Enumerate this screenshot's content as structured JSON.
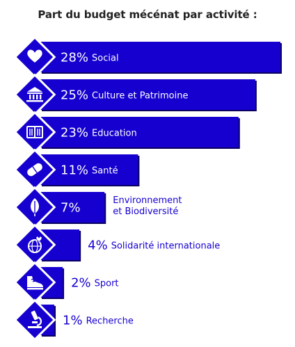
{
  "chart_data": {
    "type": "bar",
    "orientation": "horizontal",
    "title": "Part du budget mécénat par activité :",
    "categories": [
      "Social",
      "Culture et Patrimoine",
      "Education",
      "Santé",
      "Environnement et Biodiversité",
      "Solidarité internationale",
      "Sport",
      "Recherche"
    ],
    "label_lines": [
      [
        "Social"
      ],
      [
        "Culture et Patrimoine"
      ],
      [
        "Education"
      ],
      [
        "Santé"
      ],
      [
        "Environnement",
        "et Biodiversité"
      ],
      [
        "Solidarité internationale"
      ],
      [
        "Sport"
      ],
      [
        "Recherche"
      ]
    ],
    "values": [
      28,
      25,
      23,
      11,
      7,
      4,
      2,
      1
    ],
    "value_labels": [
      "28%",
      "25%",
      "23%",
      "11%",
      "7%",
      "4%",
      "2%",
      "1%"
    ],
    "icons": [
      "heart-icon",
      "museum-icon",
      "book-icon",
      "pill-icon",
      "leaf-icon",
      "globe-heart-icon",
      "sneaker-icon",
      "microscope-icon"
    ],
    "grid": false,
    "legend": "none",
    "colors": {
      "bar": "#1600d0",
      "bar_shadow": "#090060",
      "icon_bg": "#1600d0",
      "icon_fg": "#ffffff",
      "label_inside": "#ffffff",
      "label_outside": "#1600d0",
      "title": "#222222"
    }
  }
}
